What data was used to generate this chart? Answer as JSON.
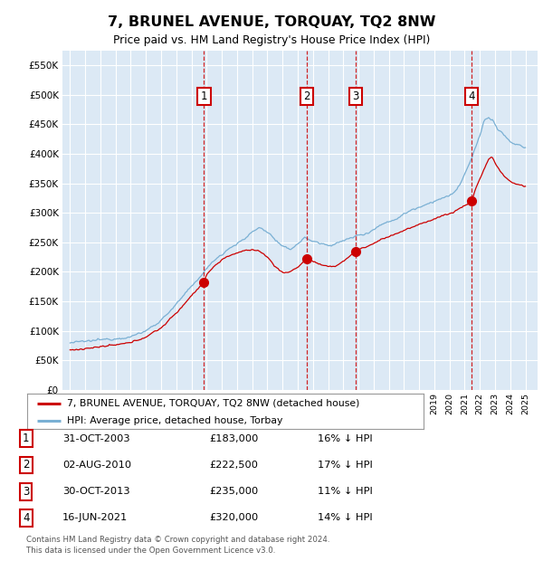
{
  "title": "7, BRUNEL AVENUE, TORQUAY, TQ2 8NW",
  "subtitle": "Price paid vs. HM Land Registry's House Price Index (HPI)",
  "legend_label_red": "7, BRUNEL AVENUE, TORQUAY, TQ2 8NW (detached house)",
  "legend_label_blue": "HPI: Average price, detached house, Torbay",
  "footer_line1": "Contains HM Land Registry data © Crown copyright and database right 2024.",
  "footer_line2": "This data is licensed under the Open Government Licence v3.0.",
  "transactions": [
    {
      "num": 1,
      "date": "31-OCT-2003",
      "price": "£183,000",
      "hpi": "16% ↓ HPI",
      "year": 2003.83
    },
    {
      "num": 2,
      "date": "02-AUG-2010",
      "price": "£222,500",
      "hpi": "17% ↓ HPI",
      "year": 2010.58
    },
    {
      "num": 3,
      "date": "30-OCT-2013",
      "price": "£235,000",
      "hpi": "11% ↓ HPI",
      "year": 2013.83
    },
    {
      "num": 4,
      "date": "16-JUN-2021",
      "price": "£320,000",
      "hpi": "14% ↓ HPI",
      "year": 2021.46
    }
  ],
  "transaction_values": [
    183000,
    222500,
    235000,
    320000
  ],
  "ylim": [
    0,
    575000
  ],
  "yticks": [
    0,
    50000,
    100000,
    150000,
    200000,
    250000,
    300000,
    350000,
    400000,
    450000,
    500000,
    550000
  ],
  "background_color": "#dce9f5",
  "grid_color": "#ffffff",
  "red_color": "#cc0000",
  "blue_color": "#7ab0d4",
  "box_color": "#cc0000",
  "xlim_left": 1994.5,
  "xlim_right": 2025.8,
  "x_years_start": 1995,
  "x_years_end": 2025
}
